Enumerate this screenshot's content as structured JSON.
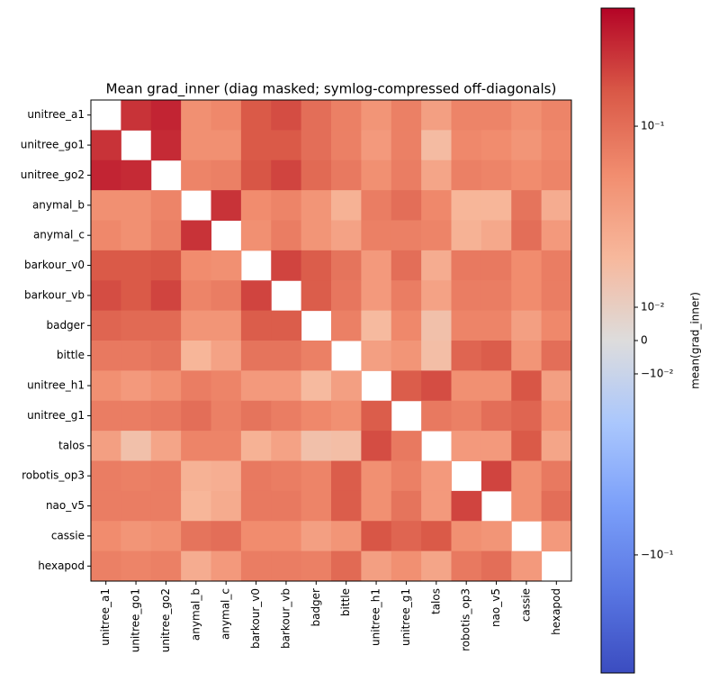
{
  "chart_data": {
    "type": "heatmap",
    "title": "Mean grad_inner (diag masked; symlog-compressed off-diagonals)",
    "categories": [
      "unitree_a1",
      "unitree_go1",
      "unitree_go2",
      "anymal_b",
      "anymal_c",
      "barkour_v0",
      "barkour_vb",
      "badger",
      "bittle",
      "unitree_h1",
      "unitree_g1",
      "talos",
      "robotis_op3",
      "nao_v5",
      "cassie",
      "hexapod"
    ],
    "values": [
      [
        null,
        0.25,
        0.3,
        0.05,
        0.06,
        0.15,
        0.18,
        0.1,
        0.07,
        0.045,
        0.07,
        0.035,
        0.065,
        0.065,
        0.05,
        0.065
      ],
      [
        0.25,
        null,
        0.28,
        0.05,
        0.05,
        0.15,
        0.15,
        0.1,
        0.07,
        0.04,
        0.07,
        0.017,
        0.06,
        0.055,
        0.045,
        0.06
      ],
      [
        0.3,
        0.28,
        null,
        0.065,
        0.07,
        0.16,
        0.2,
        0.11,
        0.08,
        0.05,
        0.075,
        0.03,
        0.07,
        0.065,
        0.055,
        0.065
      ],
      [
        0.05,
        0.05,
        0.065,
        null,
        0.25,
        0.055,
        0.065,
        0.045,
        0.022,
        0.075,
        0.1,
        0.06,
        0.02,
        0.02,
        0.09,
        0.025
      ],
      [
        0.06,
        0.05,
        0.07,
        0.25,
        null,
        0.05,
        0.075,
        0.045,
        0.032,
        0.07,
        0.07,
        0.065,
        0.022,
        0.028,
        0.1,
        0.04
      ],
      [
        0.15,
        0.15,
        0.16,
        0.055,
        0.05,
        null,
        0.2,
        0.14,
        0.09,
        0.04,
        0.1,
        0.025,
        0.08,
        0.08,
        0.055,
        0.075
      ],
      [
        0.18,
        0.15,
        0.2,
        0.065,
        0.075,
        0.2,
        null,
        0.14,
        0.085,
        0.04,
        0.075,
        0.032,
        0.075,
        0.075,
        0.055,
        0.075
      ],
      [
        0.12,
        0.11,
        0.11,
        0.045,
        0.045,
        0.14,
        0.14,
        null,
        0.07,
        0.018,
        0.06,
        0.015,
        0.065,
        0.065,
        0.035,
        0.06
      ],
      [
        0.08,
        0.08,
        0.09,
        0.02,
        0.032,
        0.09,
        0.09,
        0.07,
        null,
        0.035,
        0.045,
        0.016,
        0.12,
        0.14,
        0.045,
        0.1
      ],
      [
        0.05,
        0.04,
        0.05,
        0.075,
        0.065,
        0.04,
        0.04,
        0.018,
        0.035,
        null,
        0.14,
        0.18,
        0.05,
        0.05,
        0.16,
        0.035
      ],
      [
        0.075,
        0.075,
        0.08,
        0.1,
        0.07,
        0.09,
        0.075,
        0.06,
        0.05,
        0.14,
        null,
        0.08,
        0.07,
        0.1,
        0.12,
        0.05
      ],
      [
        0.035,
        0.015,
        0.03,
        0.065,
        0.065,
        0.022,
        0.032,
        0.015,
        0.016,
        0.18,
        0.08,
        null,
        0.04,
        0.04,
        0.15,
        0.03
      ],
      [
        0.075,
        0.07,
        0.075,
        0.022,
        0.024,
        0.08,
        0.075,
        0.065,
        0.14,
        0.05,
        0.07,
        0.04,
        null,
        0.2,
        0.05,
        0.08
      ],
      [
        0.075,
        0.075,
        0.075,
        0.02,
        0.026,
        0.08,
        0.08,
        0.065,
        0.14,
        0.05,
        0.09,
        0.04,
        0.2,
        null,
        0.05,
        0.1
      ],
      [
        0.055,
        0.045,
        0.05,
        0.09,
        0.1,
        0.055,
        0.055,
        0.035,
        0.045,
        0.16,
        0.12,
        0.15,
        0.05,
        0.045,
        null,
        0.04
      ],
      [
        0.07,
        0.065,
        0.07,
        0.025,
        0.04,
        0.075,
        0.075,
        0.07,
        0.11,
        0.035,
        0.05,
        0.03,
        0.08,
        0.1,
        0.04,
        null
      ]
    ],
    "colormap": "coolwarm",
    "colorbar_scale": "symlog",
    "linthresh": 0.01,
    "clim": [
      -0.449,
      0.449
    ],
    "colorbar_label": "mean(grad_inner)",
    "colorbar_ticks": [
      {
        "value": 0.1,
        "label": "10⁻¹"
      },
      {
        "value": 0.01,
        "label": "10⁻²"
      },
      0,
      {
        "value": -0.01,
        "label": "−10⁻²"
      },
      {
        "value": -0.1,
        "label": "−10⁻¹"
      }
    ]
  }
}
